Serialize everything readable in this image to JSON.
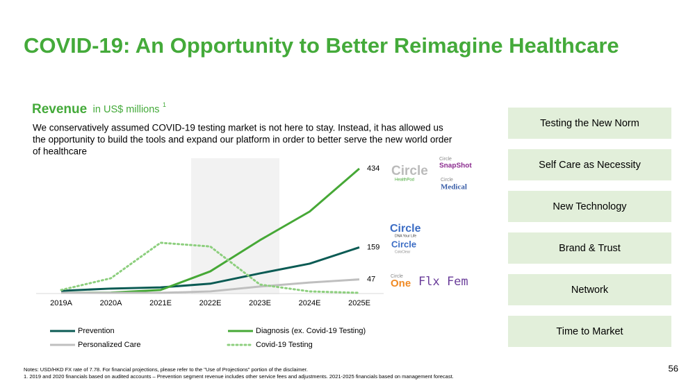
{
  "header": {
    "title": "COVID-19: An Opportunity to Better Reimagine Healthcare"
  },
  "chart_data": {
    "type": "line",
    "title": "Revenue",
    "subtitle": "in US$ millions",
    "title_note": "1",
    "description": [
      "We conservatively assumed COVID-19 testing market is not here to stay. Instead, it has allowed us",
      "the opportunity to build the tools and expand our platform in order to better serve the new world order",
      "of healthcare"
    ],
    "categories": [
      "2019A",
      "2020A",
      "2021E",
      "2022E",
      "2023E",
      "2024E",
      "2025E"
    ],
    "series": [
      {
        "name": "Prevention",
        "color": "#0b5b54",
        "dash": false,
        "values": [
          7,
          15,
          19,
          32,
          68,
          102,
          159
        ]
      },
      {
        "name": "Diagnosis (ex. Covid-19 Testing)",
        "color": "#46a836",
        "dash": false,
        "values": [
          0,
          1,
          10,
          75,
          184,
          284,
          434
        ]
      },
      {
        "name": "Personalized Care",
        "color": "#bfbfbf",
        "dash": false,
        "values": [
          0,
          0,
          0,
          5,
          22,
          36,
          47
        ]
      },
      {
        "name": "Covid-19 Testing",
        "color": "#8dcf7e",
        "dash": true,
        "values": [
          10,
          51,
          175,
          162,
          29,
          5,
          0
        ]
      }
    ]
  },
  "logos": [
    "Circle",
    "HealthPod",
    "Circle",
    "SnapShot",
    "Circle",
    "Medical",
    "Circle",
    "DNA Your Life",
    "Circle",
    "ColoClear",
    "Circle",
    "One",
    "Flx Fem"
  ],
  "pillars": [
    "Testing the New Norm",
    "Self Care as Necessity",
    "New Technology",
    "Brand & Trust",
    "Network",
    "Time to Market"
  ],
  "notes": [
    "Notes: USD/HKD FX rate of 7.78. For financial projections, please refer to the \"Use of Projections\" portion of the disclaimer.",
    "1. 2019 and 2020 financials based on audited accounts – Prevention segment revenue includes other service fees and adjustments. 2021-2025 financials based on management forecast."
  ],
  "page_number": 56
}
